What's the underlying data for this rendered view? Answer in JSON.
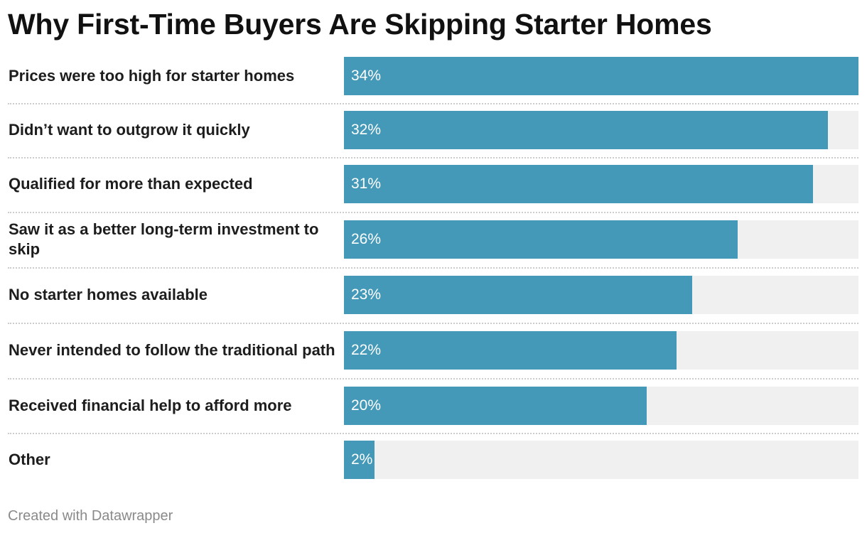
{
  "title": "Why First-Time Buyers Are Skipping Starter Homes",
  "footer": "Created with Datawrapper",
  "colors": {
    "bar": "#4499b8",
    "track": "#f0f0f0",
    "text": "#1d1d1d",
    "footer": "#8a8a8a"
  },
  "chart_data": {
    "type": "bar",
    "orientation": "horizontal",
    "title": "Why First-Time Buyers Are Skipping Starter Homes",
    "categories": [
      "Prices were too high for starter homes",
      "Didn’t want to outgrow it quickly",
      "Qualified for more than expected",
      "Saw it as a better long-term investment to skip",
      "No starter homes available",
      "Never intended to follow the traditional path",
      "Received financial help to afford more",
      "Other"
    ],
    "values": [
      34,
      32,
      31,
      26,
      23,
      22,
      20,
      2
    ],
    "value_labels": [
      "34%",
      "32%",
      "31%",
      "26%",
      "23%",
      "22%",
      "20%",
      "2%"
    ],
    "unit": "%",
    "xlim": [
      0,
      34
    ],
    "grid": false,
    "legend": "none"
  }
}
